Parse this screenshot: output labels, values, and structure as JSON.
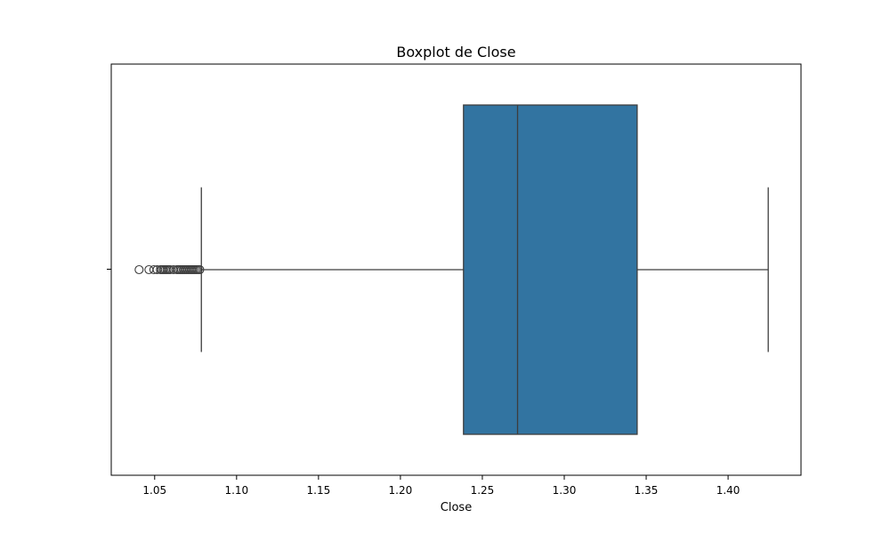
{
  "chart_data": {
    "type": "box",
    "orientation": "horizontal",
    "title": "Boxplot de Close",
    "xlabel": "Close",
    "ylabel": "",
    "xlim": [
      1.0235,
      1.4445
    ],
    "xticks": [
      1.05,
      1.1,
      1.15,
      1.2,
      1.25,
      1.3,
      1.35,
      1.4
    ],
    "xtick_labels": [
      "1.05",
      "1.10",
      "1.15",
      "1.20",
      "1.25",
      "1.30",
      "1.35",
      "1.40"
    ],
    "grid": false,
    "box": {
      "whisker_low": 1.0785,
      "q1": 1.2385,
      "median": 1.2715,
      "q3": 1.3445,
      "whisker_high": 1.4245
    },
    "outliers": [
      1.0405,
      1.0465,
      1.0495,
      1.0515,
      1.0535,
      1.0545,
      1.0555,
      1.0565,
      1.0575,
      1.0585,
      1.0595,
      1.0615,
      1.0635,
      1.0645,
      1.0655,
      1.0665,
      1.0675,
      1.0685,
      1.0695,
      1.0705,
      1.0715,
      1.0725,
      1.0735,
      1.0745,
      1.0755,
      1.0765,
      1.0775
    ],
    "colors": {
      "box_fill": "#3274a1",
      "line": "#3d3d3d",
      "axes": "#000000"
    }
  }
}
